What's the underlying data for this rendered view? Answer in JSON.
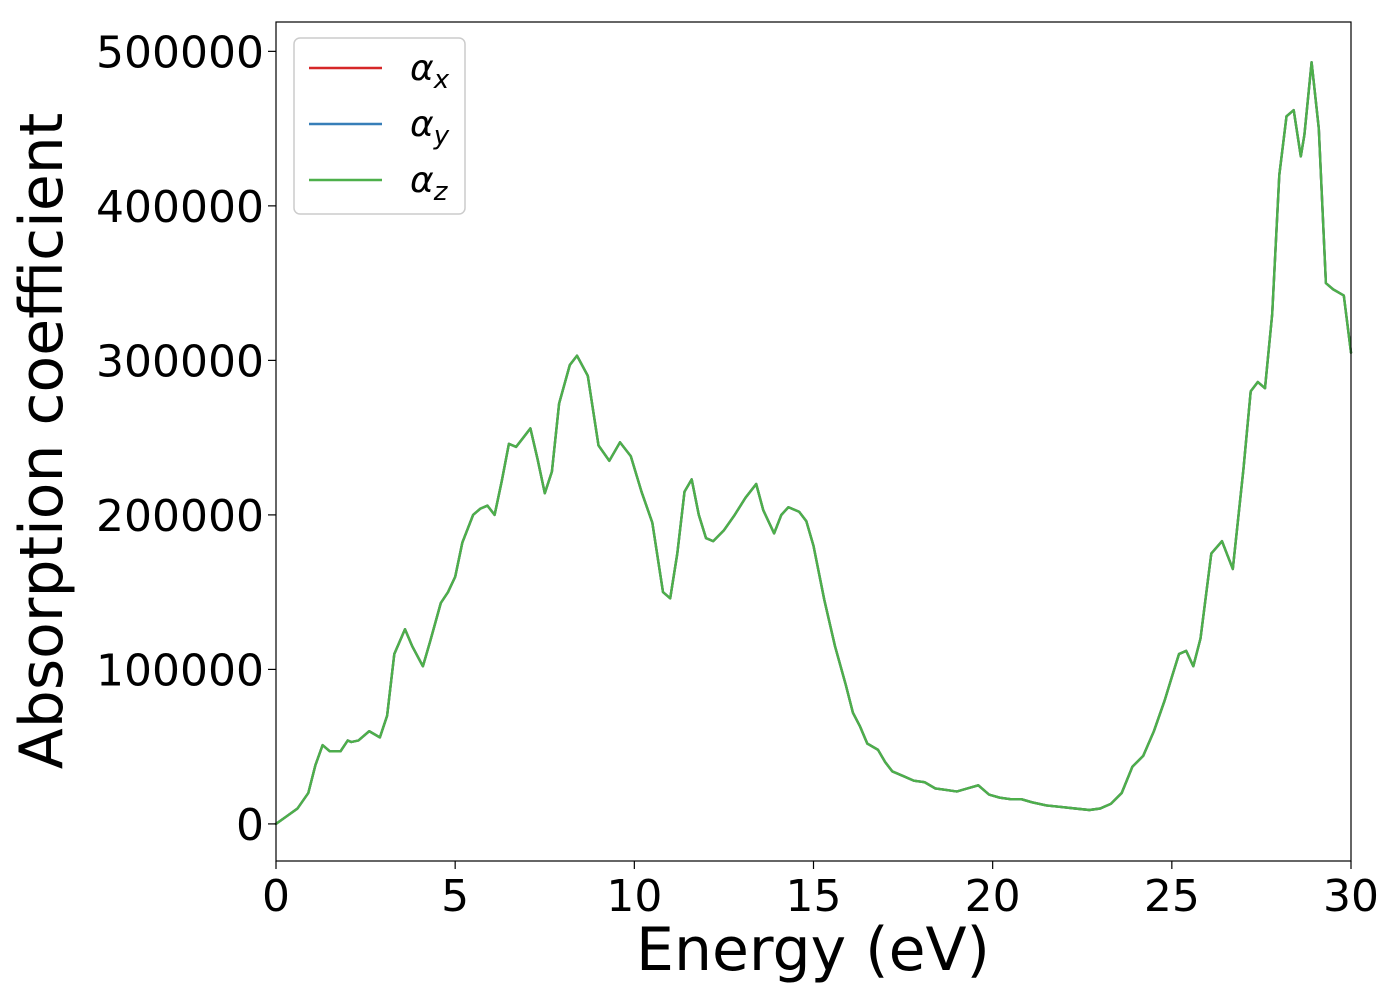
{
  "chart_data": {
    "type": "line",
    "xlabel": "Energy (eV)",
    "ylabel": "Absorption coefficient",
    "xlim": [
      0,
      30
    ],
    "ylim": [
      -24000,
      519000
    ],
    "xticks": [
      0,
      5,
      10,
      15,
      20,
      25,
      30
    ],
    "xtick_labels": [
      "0",
      "5",
      "10",
      "15",
      "20",
      "25",
      "30"
    ],
    "yticks": [
      0,
      100000,
      200000,
      300000,
      400000,
      500000
    ],
    "ytick_labels": [
      "0",
      "100000",
      "200000",
      "300000",
      "400000",
      "500000"
    ],
    "grid": false,
    "legend_position": "top-left",
    "x": [
      0,
      0.3,
      0.6,
      0.9,
      1.1,
      1.3,
      1.5,
      1.8,
      2.0,
      2.1,
      2.3,
      2.6,
      2.9,
      3.1,
      3.3,
      3.6,
      3.8,
      4.1,
      4.3,
      4.6,
      4.8,
      5.0,
      5.2,
      5.5,
      5.7,
      5.9,
      6.1,
      6.3,
      6.5,
      6.7,
      6.9,
      7.1,
      7.3,
      7.5,
      7.7,
      7.9,
      8.2,
      8.4,
      8.7,
      9.0,
      9.3,
      9.6,
      9.9,
      10.2,
      10.5,
      10.8,
      11.0,
      11.2,
      11.4,
      11.6,
      11.8,
      12.0,
      12.2,
      12.5,
      12.8,
      13.1,
      13.4,
      13.6,
      13.9,
      14.1,
      14.3,
      14.6,
      14.8,
      15.0,
      15.3,
      15.6,
      15.9,
      16.1,
      16.3,
      16.5,
      16.8,
      17.0,
      17.2,
      17.5,
      17.8,
      18.1,
      18.4,
      18.7,
      19.0,
      19.3,
      19.6,
      19.9,
      20.2,
      20.5,
      20.8,
      21.1,
      21.5,
      21.9,
      22.3,
      22.7,
      23.0,
      23.3,
      23.6,
      23.9,
      24.2,
      24.5,
      24.8,
      25.0,
      25.2,
      25.4,
      25.6,
      25.8,
      26.1,
      26.4,
      26.7,
      27.0,
      27.2,
      27.4,
      27.6,
      27.8,
      28.0,
      28.2,
      28.4,
      28.6,
      28.7,
      28.9,
      29.1,
      29.3,
      29.5,
      29.8,
      30.0
    ],
    "series": [
      {
        "name": "αx",
        "color": "#d62728",
        "values": [
          0,
          5000,
          10000,
          20000,
          38000,
          51000,
          47000,
          47000,
          54000,
          53000,
          54000,
          60000,
          56000,
          70000,
          110000,
          126000,
          115000,
          102000,
          118000,
          143000,
          150000,
          160000,
          182000,
          200000,
          204000,
          206000,
          200000,
          222000,
          246000,
          244000,
          250000,
          256000,
          236000,
          214000,
          228000,
          272000,
          297000,
          303000,
          290000,
          245000,
          235000,
          247000,
          238000,
          215000,
          195000,
          150000,
          146000,
          175000,
          215000,
          223000,
          200000,
          185000,
          183000,
          190000,
          200000,
          211000,
          220000,
          203000,
          188000,
          200000,
          205000,
          202000,
          196000,
          180000,
          145000,
          115000,
          90000,
          72000,
          63000,
          52000,
          48000,
          40000,
          34000,
          31000,
          28000,
          27000,
          23000,
          22000,
          21000,
          23000,
          25000,
          19000,
          17000,
          16000,
          16000,
          14000,
          12000,
          11000,
          10000,
          9000,
          10000,
          13000,
          20000,
          37000,
          44000,
          60000,
          80000,
          95000,
          110000,
          112000,
          102000,
          120000,
          175000,
          183000,
          165000,
          230000,
          280000,
          286000,
          282000,
          330000,
          420000,
          458000,
          462000,
          432000,
          446000,
          493000,
          450000,
          350000,
          346000,
          342000,
          305000
        ]
      },
      {
        "name": "αy",
        "color": "#377eb8",
        "values": [
          0,
          5000,
          10000,
          20000,
          38000,
          51000,
          47000,
          47000,
          54000,
          53000,
          54000,
          60000,
          56000,
          70000,
          110000,
          126000,
          115000,
          102000,
          118000,
          143000,
          150000,
          160000,
          182000,
          200000,
          204000,
          206000,
          200000,
          222000,
          246000,
          244000,
          250000,
          256000,
          236000,
          214000,
          228000,
          272000,
          297000,
          303000,
          290000,
          245000,
          235000,
          247000,
          238000,
          215000,
          195000,
          150000,
          146000,
          175000,
          215000,
          223000,
          200000,
          185000,
          183000,
          190000,
          200000,
          211000,
          220000,
          203000,
          188000,
          200000,
          205000,
          202000,
          196000,
          180000,
          145000,
          115000,
          90000,
          72000,
          63000,
          52000,
          48000,
          40000,
          34000,
          31000,
          28000,
          27000,
          23000,
          22000,
          21000,
          23000,
          25000,
          19000,
          17000,
          16000,
          16000,
          14000,
          12000,
          11000,
          10000,
          9000,
          10000,
          13000,
          20000,
          37000,
          44000,
          60000,
          80000,
          95000,
          110000,
          112000,
          102000,
          120000,
          175000,
          183000,
          165000,
          230000,
          280000,
          286000,
          282000,
          330000,
          420000,
          458000,
          462000,
          432000,
          446000,
          493000,
          450000,
          350000,
          346000,
          342000,
          305000
        ]
      },
      {
        "name": "αz",
        "color": "#4daf4a",
        "values": [
          0,
          5000,
          10000,
          20000,
          38000,
          51000,
          47000,
          47000,
          54000,
          53000,
          54000,
          60000,
          56000,
          70000,
          110000,
          126000,
          115000,
          102000,
          118000,
          143000,
          150000,
          160000,
          182000,
          200000,
          204000,
          206000,
          200000,
          222000,
          246000,
          244000,
          250000,
          256000,
          236000,
          214000,
          228000,
          272000,
          297000,
          303000,
          290000,
          245000,
          235000,
          247000,
          238000,
          215000,
          195000,
          150000,
          146000,
          175000,
          215000,
          223000,
          200000,
          185000,
          183000,
          190000,
          200000,
          211000,
          220000,
          203000,
          188000,
          200000,
          205000,
          202000,
          196000,
          180000,
          145000,
          115000,
          90000,
          72000,
          63000,
          52000,
          48000,
          40000,
          34000,
          31000,
          28000,
          27000,
          23000,
          22000,
          21000,
          23000,
          25000,
          19000,
          17000,
          16000,
          16000,
          14000,
          12000,
          11000,
          10000,
          9000,
          10000,
          13000,
          20000,
          37000,
          44000,
          60000,
          80000,
          95000,
          110000,
          112000,
          102000,
          120000,
          175000,
          183000,
          165000,
          230000,
          280000,
          286000,
          282000,
          330000,
          420000,
          458000,
          462000,
          432000,
          446000,
          493000,
          450000,
          350000,
          346000,
          342000,
          305000
        ]
      }
    ],
    "legend": [
      {
        "symbol": "α",
        "sub": "x",
        "color": "#d62728"
      },
      {
        "symbol": "α",
        "sub": "y",
        "color": "#377eb8"
      },
      {
        "symbol": "α",
        "sub": "z",
        "color": "#4daf4a"
      }
    ]
  }
}
